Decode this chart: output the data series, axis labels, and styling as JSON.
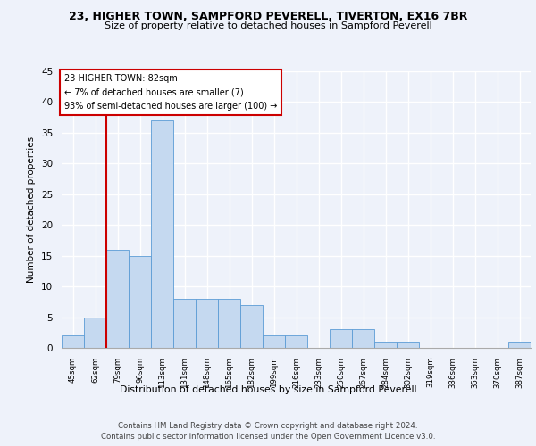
{
  "title1": "23, HIGHER TOWN, SAMPFORD PEVERELL, TIVERTON, EX16 7BR",
  "title2": "Size of property relative to detached houses in Sampford Peverell",
  "xlabel": "Distribution of detached houses by size in Sampford Peverell",
  "ylabel": "Number of detached properties",
  "footer1": "Contains HM Land Registry data © Crown copyright and database right 2024.",
  "footer2": "Contains public sector information licensed under the Open Government Licence v3.0.",
  "annotation_title": "23 HIGHER TOWN: 82sqm",
  "annotation_line2": "← 7% of detached houses are smaller (7)",
  "annotation_line3": "93% of semi-detached houses are larger (100) →",
  "bar_color": "#c5d9f0",
  "bar_edge_color": "#5b9bd5",
  "marker_line_color": "#cc0000",
  "annotation_box_edge": "#cc0000",
  "bg_color": "#eef2fa",
  "plot_bg_color": "#eef2fa",
  "grid_color": "#ffffff",
  "categories": [
    "45sqm",
    "62sqm",
    "79sqm",
    "96sqm",
    "113sqm",
    "131sqm",
    "148sqm",
    "165sqm",
    "182sqm",
    "199sqm",
    "216sqm",
    "233sqm",
    "250sqm",
    "267sqm",
    "284sqm",
    "302sqm",
    "319sqm",
    "336sqm",
    "353sqm",
    "370sqm",
    "387sqm"
  ],
  "values": [
    2,
    5,
    16,
    15,
    37,
    8,
    8,
    8,
    7,
    2,
    2,
    0,
    3,
    3,
    1,
    1,
    0,
    0,
    0,
    0,
    1
  ],
  "marker_bar_index": 2,
  "ylim": [
    0,
    45
  ],
  "yticks": [
    0,
    5,
    10,
    15,
    20,
    25,
    30,
    35,
    40,
    45
  ]
}
